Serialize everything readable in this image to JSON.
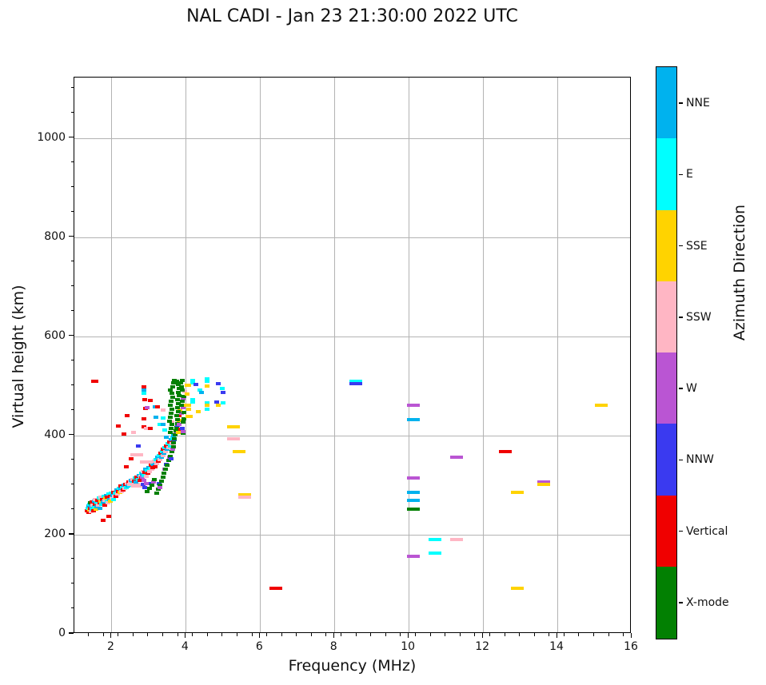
{
  "page": {
    "title": "NAL CADI - Jan 23 21:30:00 2022 UTC"
  },
  "chart_data": {
    "type": "scatter",
    "title": "NAL CADI - Jan 23 21:30:00 2022 UTC",
    "xlabel": "Frequency (MHz)",
    "ylabel": "Virtual height (km)",
    "xlim": [
      1,
      16
    ],
    "ylim": [
      0,
      1122
    ],
    "xticks": [
      2,
      4,
      6,
      8,
      10,
      12,
      14,
      16
    ],
    "yticks": [
      0,
      200,
      400,
      600,
      800,
      1000
    ],
    "x_minor_step": 0.4,
    "y_minor_step": 50,
    "grid": true,
    "grid_color": "#b3b3b3",
    "colorbar": {
      "label": "Azimuth Direction",
      "segments_top_to_bottom": [
        {
          "key": "NNE",
          "label": "NNE",
          "color": "#00B2EE"
        },
        {
          "key": "E",
          "label": "E",
          "color": "#00FFFF"
        },
        {
          "key": "SSE",
          "label": "SSE",
          "color": "#FFD300"
        },
        {
          "key": "SSW",
          "label": "SSW",
          "color": "#FFB6C4"
        },
        {
          "key": "W",
          "label": "W",
          "color": "#BA55D3"
        },
        {
          "key": "NNW",
          "label": "NNW",
          "color": "#3A3AF0"
        },
        {
          "key": "V",
          "label": "Vertical",
          "color": "#F00000"
        },
        {
          "key": "X",
          "label": "X-mode",
          "color": "#028002"
        }
      ]
    },
    "point_format": "[frequency_MHz, virtual_height_km, azimuth_key, wide_dash_flag(optional)]",
    "points": [
      [
        1.36,
        246,
        "V"
      ],
      [
        1.38,
        252,
        "E"
      ],
      [
        1.4,
        243,
        "V"
      ],
      [
        1.41,
        256,
        "NNE"
      ],
      [
        1.43,
        248,
        "SSE"
      ],
      [
        1.44,
        260,
        "E"
      ],
      [
        1.45,
        252,
        "V"
      ],
      [
        1.45,
        262,
        "X"
      ],
      [
        1.47,
        245,
        "SSW"
      ],
      [
        1.48,
        256,
        "NNE"
      ],
      [
        1.5,
        250,
        "E"
      ],
      [
        1.5,
        264,
        "V"
      ],
      [
        1.52,
        258,
        "SSW"
      ],
      [
        1.53,
        247,
        "V"
      ],
      [
        1.55,
        266,
        "NNE"
      ],
      [
        1.56,
        254,
        "E"
      ],
      [
        1.58,
        260,
        "V"
      ],
      [
        1.59,
        270,
        "SSW"
      ],
      [
        1.6,
        250,
        "SSE"
      ],
      [
        1.62,
        263,
        "E"
      ],
      [
        1.63,
        255,
        "NNE"
      ],
      [
        1.65,
        268,
        "V"
      ],
      [
        1.66,
        258,
        "SSW"
      ],
      [
        1.68,
        272,
        "E"
      ],
      [
        1.7,
        262,
        "V"
      ],
      [
        1.71,
        252,
        "NNE"
      ],
      [
        1.73,
        266,
        "SSE"
      ],
      [
        1.74,
        274,
        "SSW"
      ],
      [
        1.76,
        260,
        "E"
      ],
      [
        1.78,
        270,
        "V"
      ],
      [
        1.8,
        264,
        "NNE"
      ],
      [
        1.81,
        276,
        "E"
      ],
      [
        1.83,
        268,
        "SSW"
      ],
      [
        1.85,
        258,
        "V"
      ],
      [
        1.86,
        272,
        "SSE"
      ],
      [
        1.88,
        278,
        "NNE"
      ],
      [
        1.9,
        266,
        "E"
      ],
      [
        1.91,
        274,
        "V"
      ],
      [
        1.93,
        262,
        "SSW"
      ],
      [
        1.95,
        280,
        "E"
      ],
      [
        1.96,
        270,
        "NNE"
      ],
      [
        1.98,
        276,
        "V"
      ],
      [
        2.0,
        266,
        "SSE"
      ],
      [
        2.01,
        282,
        "E"
      ],
      [
        2.03,
        272,
        "SSW"
      ],
      [
        2.05,
        278,
        "NNE"
      ],
      [
        2.07,
        284,
        "V"
      ],
      [
        2.08,
        270,
        "E"
      ],
      [
        2.1,
        276,
        "SSW"
      ],
      [
        1.8,
        228,
        "V"
      ],
      [
        1.95,
        235,
        "V"
      ],
      [
        2.12,
        282,
        "E"
      ],
      [
        2.14,
        276,
        "V"
      ],
      [
        2.16,
        288,
        "NNE"
      ],
      [
        2.18,
        280,
        "SSW"
      ],
      [
        2.2,
        286,
        "V"
      ],
      [
        2.22,
        292,
        "E"
      ],
      [
        2.24,
        284,
        "SSE"
      ],
      [
        2.26,
        290,
        "NNE"
      ],
      [
        2.28,
        296,
        "V"
      ],
      [
        2.3,
        286,
        "SSW"
      ],
      [
        2.32,
        294,
        "E"
      ],
      [
        2.34,
        288,
        "V"
      ],
      [
        2.36,
        298,
        "NNE"
      ],
      [
        2.38,
        292,
        "SSW"
      ],
      [
        2.4,
        300,
        "V"
      ],
      [
        2.42,
        294,
        "E"
      ],
      [
        2.44,
        302,
        "SSW"
      ],
      [
        2.46,
        296,
        "NNE"
      ],
      [
        2.48,
        304,
        "V"
      ],
      [
        2.5,
        298,
        "E"
      ],
      [
        2.52,
        306,
        "SSW"
      ],
      [
        2.54,
        300,
        "V"
      ],
      [
        2.56,
        308,
        "NNE"
      ],
      [
        2.58,
        302,
        "E"
      ],
      [
        2.6,
        310,
        "SSW"
      ],
      [
        2.62,
        300,
        "SSW",
        1
      ],
      [
        2.64,
        306,
        "V"
      ],
      [
        2.66,
        312,
        "E"
      ],
      [
        2.68,
        304,
        "NNE"
      ],
      [
        2.7,
        314,
        "V"
      ],
      [
        2.72,
        296,
        "SSW",
        1
      ],
      [
        2.74,
        310,
        "E"
      ],
      [
        2.76,
        318,
        "NNE"
      ],
      [
        2.78,
        308,
        "V"
      ],
      [
        2.8,
        316,
        "SSW"
      ],
      [
        2.82,
        322,
        "E"
      ],
      [
        2.84,
        312,
        "V"
      ],
      [
        2.85,
        315,
        "W"
      ],
      [
        2.86,
        320,
        "NNE"
      ],
      [
        2.88,
        300,
        "NNW"
      ],
      [
        2.88,
        326,
        "SSW"
      ],
      [
        2.9,
        308,
        "W"
      ],
      [
        2.9,
        318,
        "E"
      ],
      [
        2.92,
        294,
        "NNW"
      ],
      [
        2.92,
        324,
        "V"
      ],
      [
        2.94,
        330,
        "NNE"
      ],
      [
        2.95,
        302,
        "W"
      ],
      [
        2.96,
        316,
        "SSW"
      ],
      [
        2.98,
        286,
        "X"
      ],
      [
        2.98,
        328,
        "E"
      ],
      [
        3.0,
        322,
        "V"
      ],
      [
        3.02,
        334,
        "NNE"
      ],
      [
        3.04,
        326,
        "SSW"
      ],
      [
        3.05,
        292,
        "X"
      ],
      [
        3.06,
        332,
        "E"
      ],
      [
        3.08,
        302,
        "NNW"
      ],
      [
        3.08,
        338,
        "V"
      ],
      [
        3.1,
        298,
        "X"
      ],
      [
        3.1,
        330,
        "SSW"
      ],
      [
        3.12,
        342,
        "E"
      ],
      [
        3.14,
        334,
        "V"
      ],
      [
        3.15,
        304,
        "W"
      ],
      [
        3.16,
        340,
        "NNE"
      ],
      [
        3.18,
        310,
        "X"
      ],
      [
        3.18,
        346,
        "SSW"
      ],
      [
        3.2,
        336,
        "V"
      ],
      [
        3.22,
        350,
        "E"
      ],
      [
        3.24,
        342,
        "SSW"
      ],
      [
        3.26,
        354,
        "NNE"
      ],
      [
        3.28,
        346,
        "V"
      ],
      [
        3.3,
        358,
        "E"
      ],
      [
        3.32,
        350,
        "SSW"
      ],
      [
        3.34,
        362,
        "V"
      ],
      [
        3.36,
        354,
        "NNE"
      ],
      [
        3.38,
        366,
        "E"
      ],
      [
        3.4,
        358,
        "SSW"
      ],
      [
        3.42,
        370,
        "V"
      ],
      [
        3.44,
        362,
        "NNE"
      ],
      [
        3.46,
        374,
        "E"
      ],
      [
        3.48,
        366,
        "SSW"
      ],
      [
        3.5,
        378,
        "V"
      ],
      [
        3.52,
        370,
        "NNE"
      ],
      [
        3.54,
        382,
        "E"
      ],
      [
        3.56,
        374,
        "SSW"
      ],
      [
        3.58,
        386,
        "V"
      ],
      [
        3.6,
        378,
        "E"
      ],
      [
        3.62,
        390,
        "NNE"
      ],
      [
        3.64,
        382,
        "SSW"
      ],
      [
        3.66,
        394,
        "E"
      ],
      [
        3.68,
        386,
        "V"
      ],
      [
        3.7,
        398,
        "NNE"
      ],
      [
        2.95,
        345,
        "SSW",
        1
      ],
      [
        2.2,
        418,
        "V"
      ],
      [
        2.35,
        402,
        "V"
      ],
      [
        2.45,
        438,
        "V"
      ],
      [
        2.61,
        404,
        "SSW"
      ],
      [
        2.89,
        496,
        "V"
      ],
      [
        2.9,
        490,
        "NNE"
      ],
      [
        2.89,
        483,
        "E"
      ],
      [
        2.91,
        470,
        "V"
      ],
      [
        3.07,
        469,
        "V"
      ],
      [
        2.93,
        453,
        "V"
      ],
      [
        2.97,
        455,
        "W"
      ],
      [
        2.89,
        432,
        "V"
      ],
      [
        2.9,
        416,
        "V"
      ],
      [
        2.96,
        413,
        "SSW"
      ],
      [
        3.07,
        412,
        "V"
      ],
      [
        3.2,
        456,
        "NNE"
      ],
      [
        3.27,
        457,
        "V"
      ],
      [
        3.4,
        450,
        "SSW"
      ],
      [
        3.22,
        435,
        "NNE"
      ],
      [
        3.4,
        434,
        "E"
      ],
      [
        3.32,
        420,
        "E"
      ],
      [
        3.41,
        420,
        "NNE"
      ],
      [
        3.65,
        425,
        "SSW"
      ],
      [
        3.45,
        410,
        "E"
      ],
      [
        3.5,
        395,
        "NNE"
      ],
      [
        2.55,
        352,
        "V"
      ],
      [
        2.42,
        335,
        "V"
      ],
      [
        1.54,
        508,
        "V"
      ],
      [
        1.6,
        508,
        "V"
      ],
      [
        2.75,
        377,
        "NNW"
      ],
      [
        2.7,
        360,
        "SSW",
        1
      ],
      [
        3.24,
        282,
        "X"
      ],
      [
        3.28,
        290,
        "X"
      ],
      [
        3.3,
        302,
        "NNW"
      ],
      [
        3.32,
        298,
        "X"
      ],
      [
        3.33,
        294,
        "W"
      ],
      [
        3.36,
        306,
        "X"
      ],
      [
        3.4,
        314,
        "X"
      ],
      [
        3.44,
        322,
        "X"
      ],
      [
        3.45,
        330,
        "W"
      ],
      [
        3.48,
        331,
        "X"
      ],
      [
        3.5,
        340,
        "NNW"
      ],
      [
        3.52,
        338,
        "X"
      ],
      [
        3.56,
        348,
        "X"
      ],
      [
        3.58,
        355,
        "W"
      ],
      [
        3.6,
        357,
        "X"
      ],
      [
        3.62,
        352,
        "NNW"
      ],
      [
        3.64,
        366,
        "X"
      ],
      [
        3.66,
        371,
        "W"
      ],
      [
        3.68,
        375,
        "X"
      ],
      [
        3.7,
        384,
        "X"
      ],
      [
        3.71,
        390,
        "NNW"
      ],
      [
        3.72,
        392,
        "X"
      ],
      [
        3.74,
        400,
        "X"
      ],
      [
        3.75,
        406,
        "W"
      ],
      [
        3.76,
        408,
        "X"
      ],
      [
        3.78,
        415,
        "X"
      ],
      [
        3.79,
        419,
        "NNW"
      ],
      [
        3.8,
        423,
        "X"
      ],
      [
        3.6,
        405,
        "X"
      ],
      [
        3.62,
        412,
        "X"
      ],
      [
        3.64,
        420,
        "X"
      ],
      [
        3.58,
        428,
        "X"
      ],
      [
        3.6,
        436,
        "X"
      ],
      [
        3.62,
        444,
        "X"
      ],
      [
        3.65,
        452,
        "X"
      ],
      [
        3.6,
        460,
        "X"
      ],
      [
        3.63,
        468,
        "X"
      ],
      [
        3.66,
        476,
        "X"
      ],
      [
        3.64,
        483,
        "X"
      ],
      [
        3.61,
        490,
        "X"
      ],
      [
        3.66,
        497,
        "X"
      ],
      [
        3.68,
        504,
        "X"
      ],
      [
        3.71,
        510,
        "X"
      ],
      [
        3.82,
        404,
        "SSE"
      ],
      [
        3.85,
        421,
        "W"
      ],
      [
        3.85,
        429,
        "SSE"
      ],
      [
        3.85,
        439,
        "V"
      ],
      [
        3.87,
        449,
        "SSE"
      ],
      [
        3.88,
        411,
        "V"
      ],
      [
        3.9,
        443,
        "W"
      ],
      [
        3.95,
        403,
        "X"
      ],
      [
        3.92,
        412,
        "NNW"
      ],
      [
        3.95,
        407,
        "W"
      ],
      [
        3.94,
        425,
        "X"
      ],
      [
        3.96,
        432,
        "X"
      ],
      [
        3.98,
        445,
        "X"
      ],
      [
        3.95,
        455,
        "W"
      ],
      [
        3.95,
        472,
        "W"
      ],
      [
        3.98,
        477,
        "X"
      ],
      [
        4.0,
        487,
        "SSW"
      ],
      [
        4.02,
        460,
        "SSE"
      ],
      [
        4.05,
        482,
        "SSE"
      ],
      [
        4.05,
        500,
        "SSE"
      ],
      [
        4.08,
        437,
        "SSE"
      ],
      [
        4.1,
        451,
        "SSE"
      ],
      [
        3.92,
        468,
        "X"
      ],
      [
        3.9,
        460,
        "X"
      ],
      [
        3.93,
        490,
        "X"
      ],
      [
        3.91,
        497,
        "X"
      ],
      [
        3.89,
        505,
        "X"
      ],
      [
        3.93,
        510,
        "X"
      ],
      [
        3.8,
        430,
        "X"
      ],
      [
        3.78,
        438,
        "X"
      ],
      [
        3.81,
        446,
        "X"
      ],
      [
        3.79,
        455,
        "X"
      ],
      [
        3.82,
        462,
        "X"
      ],
      [
        3.8,
        470,
        "X"
      ],
      [
        3.83,
        478,
        "X"
      ],
      [
        3.81,
        486,
        "X"
      ],
      [
        3.84,
        494,
        "X"
      ],
      [
        3.82,
        502,
        "X"
      ],
      [
        3.77,
        508,
        "X"
      ],
      [
        4.2,
        505,
        "E"
      ],
      [
        4.2,
        510,
        "E"
      ],
      [
        4.3,
        502,
        "NNW"
      ],
      [
        4.1,
        500,
        "SSE"
      ],
      [
        4.6,
        507,
        "E"
      ],
      [
        4.6,
        512,
        "E"
      ],
      [
        4.6,
        498,
        "SSE"
      ],
      [
        4.9,
        503,
        "NNW"
      ],
      [
        5.0,
        494,
        "E"
      ],
      [
        5.02,
        485,
        "NNW"
      ],
      [
        5.03,
        465,
        "E"
      ],
      [
        4.2,
        466,
        "E"
      ],
      [
        4.2,
        471,
        "E"
      ],
      [
        4.1,
        460,
        "SSE"
      ],
      [
        4.6,
        465,
        "E"
      ],
      [
        4.6,
        459,
        "SSE"
      ],
      [
        4.85,
        466,
        "NNW"
      ],
      [
        4.9,
        459,
        "SSE"
      ],
      [
        4.6,
        452,
        "E"
      ],
      [
        4.35,
        447,
        "SSE"
      ],
      [
        4.15,
        437,
        "SSE"
      ],
      [
        4.4,
        490,
        "E"
      ],
      [
        4.45,
        485,
        "NNE"
      ],
      [
        5.3,
        416,
        "SSE",
        1
      ],
      [
        5.3,
        392,
        "SSW",
        1
      ],
      [
        5.45,
        366,
        "SSE",
        1
      ],
      [
        5.6,
        279,
        "SSE",
        1
      ],
      [
        5.6,
        274,
        "SSW",
        1
      ],
      [
        6.45,
        90,
        "V",
        1
      ],
      [
        8.6,
        507,
        "E",
        1
      ],
      [
        8.6,
        503,
        "NNW",
        1
      ],
      [
        10.15,
        459,
        "W",
        1
      ],
      [
        10.15,
        430,
        "NNE",
        1
      ],
      [
        10.15,
        313,
        "W",
        1
      ],
      [
        10.15,
        284,
        "NNE",
        1
      ],
      [
        10.15,
        268,
        "NNE",
        1
      ],
      [
        10.15,
        250,
        "X",
        1
      ],
      [
        10.15,
        155,
        "W",
        1
      ],
      [
        10.72,
        188,
        "E",
        1
      ],
      [
        11.3,
        188,
        "SSW",
        1
      ],
      [
        10.72,
        161,
        "E",
        1
      ],
      [
        11.3,
        354,
        "W",
        1
      ],
      [
        12.62,
        366,
        "V",
        1
      ],
      [
        12.95,
        284,
        "SSE",
        1
      ],
      [
        12.95,
        91,
        "SSE",
        1
      ],
      [
        13.65,
        305,
        "W",
        1
      ],
      [
        13.65,
        300,
        "SSE",
        1
      ],
      [
        15.2,
        460,
        "SSE",
        1
      ]
    ]
  }
}
